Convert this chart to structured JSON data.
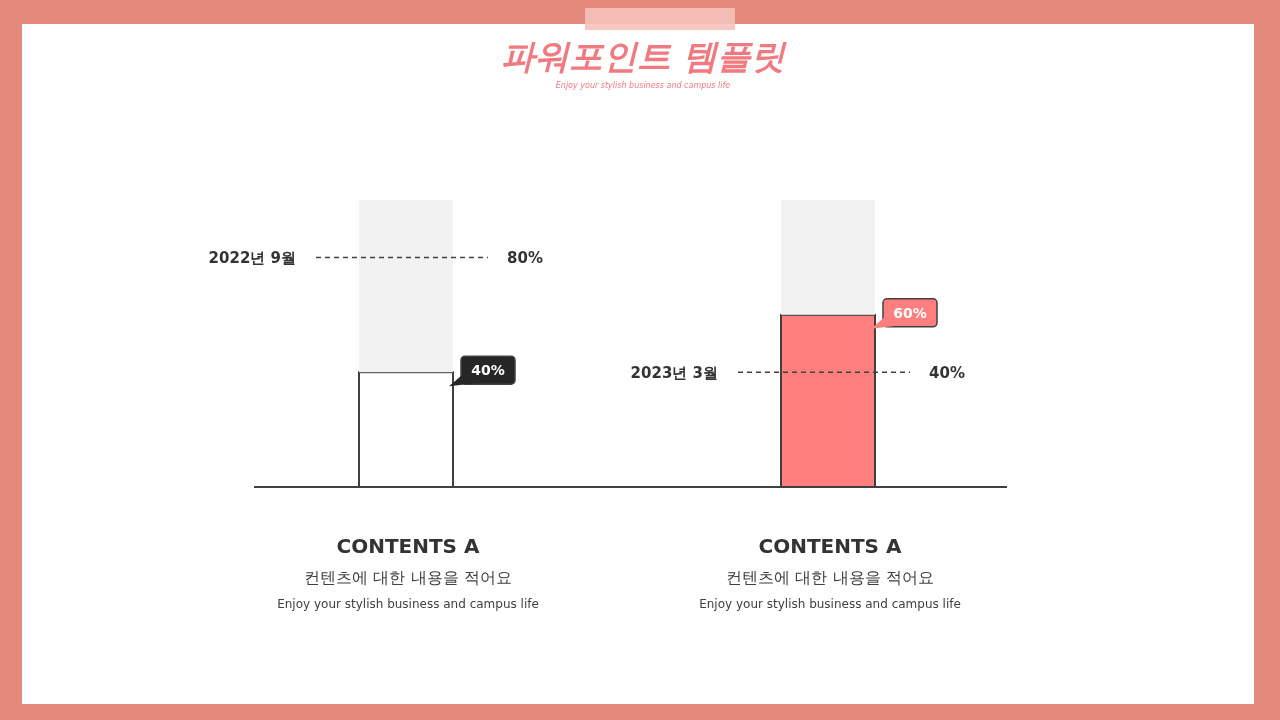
{
  "chart_data": {
    "type": "bar",
    "title": "파워포인트 템플릿",
    "subtitle": "Enjoy your stylish business and campus life",
    "categories": [
      "CONTENTS A",
      "CONTENTS A"
    ],
    "stacked": true,
    "ylim": [
      0,
      100
    ],
    "tick_labels": "x",
    "series": [
      {
        "colors": [
          "#ffffff",
          "#ff7f7f"
        ],
        "values": [
          40,
          60
        ],
        "value_labels": [
          "40%",
          "60%"
        ]
      },
      {
        "color": "#f2f2f2",
        "values": [
          60,
          40
        ],
        "value_labels": [
          null,
          null
        ]
      }
    ],
    "ref_lines": [
      {
        "axis": "y",
        "value": 80,
        "label": "80%",
        "color": "#404040",
        "line_style": "dashed"
      },
      {
        "axis": "y",
        "value": 40,
        "label": "40%",
        "color": "#404040",
        "line_style": "dashed"
      }
    ],
    "annotations": [
      "2022년 9월",
      "2023년 3월",
      "컨텐츠에 대한 내용을 적어요",
      "Enjoy your stylish business and campus life",
      "컨텐츠에 대한 내용을 적어요",
      "Enjoy your stylish business and campus life"
    ]
  }
}
